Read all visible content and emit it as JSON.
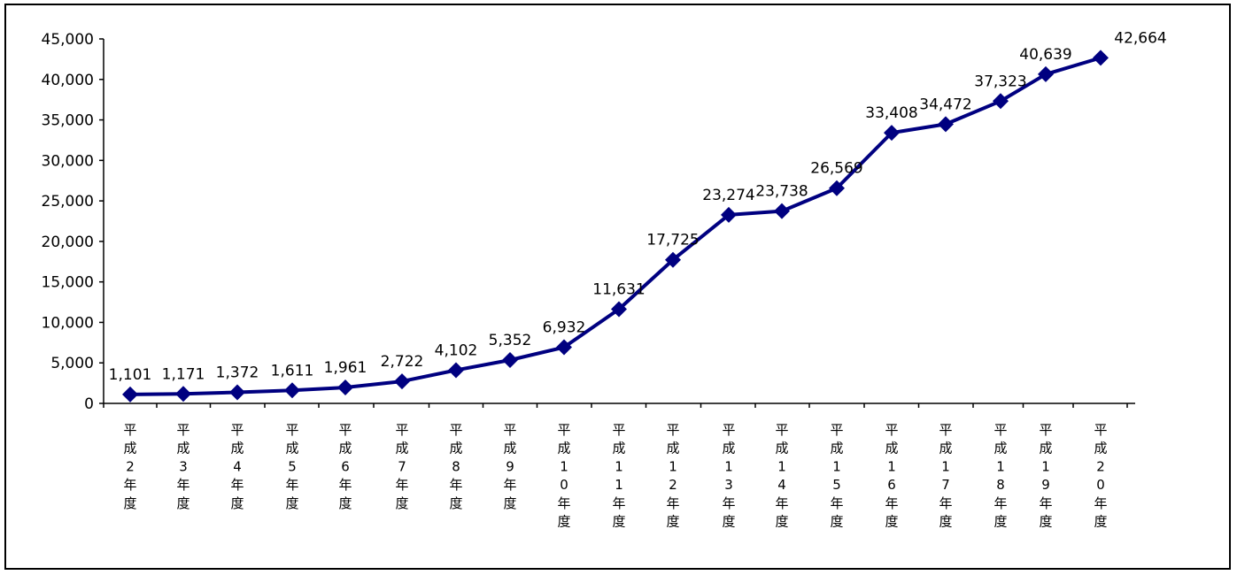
{
  "chart_data": {
    "type": "line",
    "categories": [
      "平成2年度",
      "平成3年度",
      "平成4年度",
      "平成5年度",
      "平成6年度",
      "平成7年度",
      "平成8年度",
      "平成9年度",
      "平成10年度",
      "平成11年度",
      "平成12年度",
      "平成13年度",
      "平成14年度",
      "平成15年度",
      "平成16年度",
      "平成17年度",
      "平成18年度",
      "平成19年度",
      "平成20年度"
    ],
    "values": [
      1101,
      1171,
      1372,
      1611,
      1961,
      2722,
      4102,
      5352,
      6932,
      11631,
      17725,
      23274,
      23738,
      26569,
      33408,
      34472,
      37323,
      40639,
      42664
    ],
    "value_labels": [
      "1,101",
      "1,171",
      "1,372",
      "1,611",
      "1,961",
      "2,722",
      "4,102",
      "5,352",
      "6,932",
      "11,631",
      "17,725",
      "23,274",
      "23,738",
      "26,569",
      "33,408",
      "34,472",
      "37,323",
      "40,639",
      "42,664"
    ],
    "y_ticks": [
      "0",
      "5,000",
      "10,000",
      "15,000",
      "20,000",
      "25,000",
      "30,000",
      "35,000",
      "40,000",
      "45,000"
    ],
    "ylim": [
      0,
      45000
    ],
    "title": "",
    "xlabel": "",
    "ylabel": "",
    "grid": false,
    "legend": "none",
    "marker": "diamond",
    "line_color": "#000080"
  }
}
